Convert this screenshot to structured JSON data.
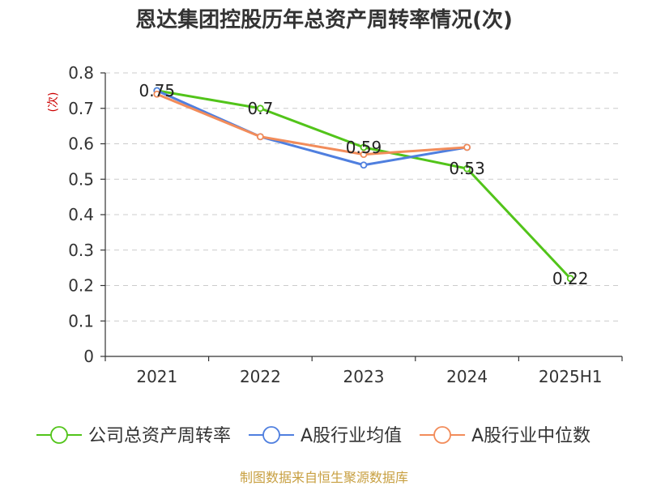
{
  "chart_data": {
    "type": "line",
    "title": "恩达集团控股历年总资产周转率情况(次)",
    "ylabel": "(次)",
    "xlabel": "",
    "categories": [
      "2021",
      "2022",
      "2023",
      "2024",
      "2025H1"
    ],
    "ylim": [
      0,
      0.8
    ],
    "yticks": [
      "0",
      "0.1",
      "0.2",
      "0.3",
      "0.4",
      "0.5",
      "0.6",
      "0.7",
      "0.8"
    ],
    "grid": true,
    "legend_position": "bottom",
    "series": [
      {
        "name": "公司总资产周转率",
        "color": "#52c41a",
        "values": [
          0.75,
          0.7,
          0.59,
          0.53,
          0.22
        ],
        "labels": [
          "0.75",
          "0.7",
          "0.59",
          "0.53",
          "0.22"
        ]
      },
      {
        "name": "A股行业均值",
        "color": "#4f7fdf",
        "values": [
          0.75,
          0.62,
          0.54,
          0.59,
          null
        ]
      },
      {
        "name": "A股行业中位数",
        "color": "#f28c5a",
        "values": [
          0.74,
          0.62,
          0.57,
          0.59,
          null
        ]
      }
    ]
  },
  "source": "制图数据来自恒生聚源数据库"
}
